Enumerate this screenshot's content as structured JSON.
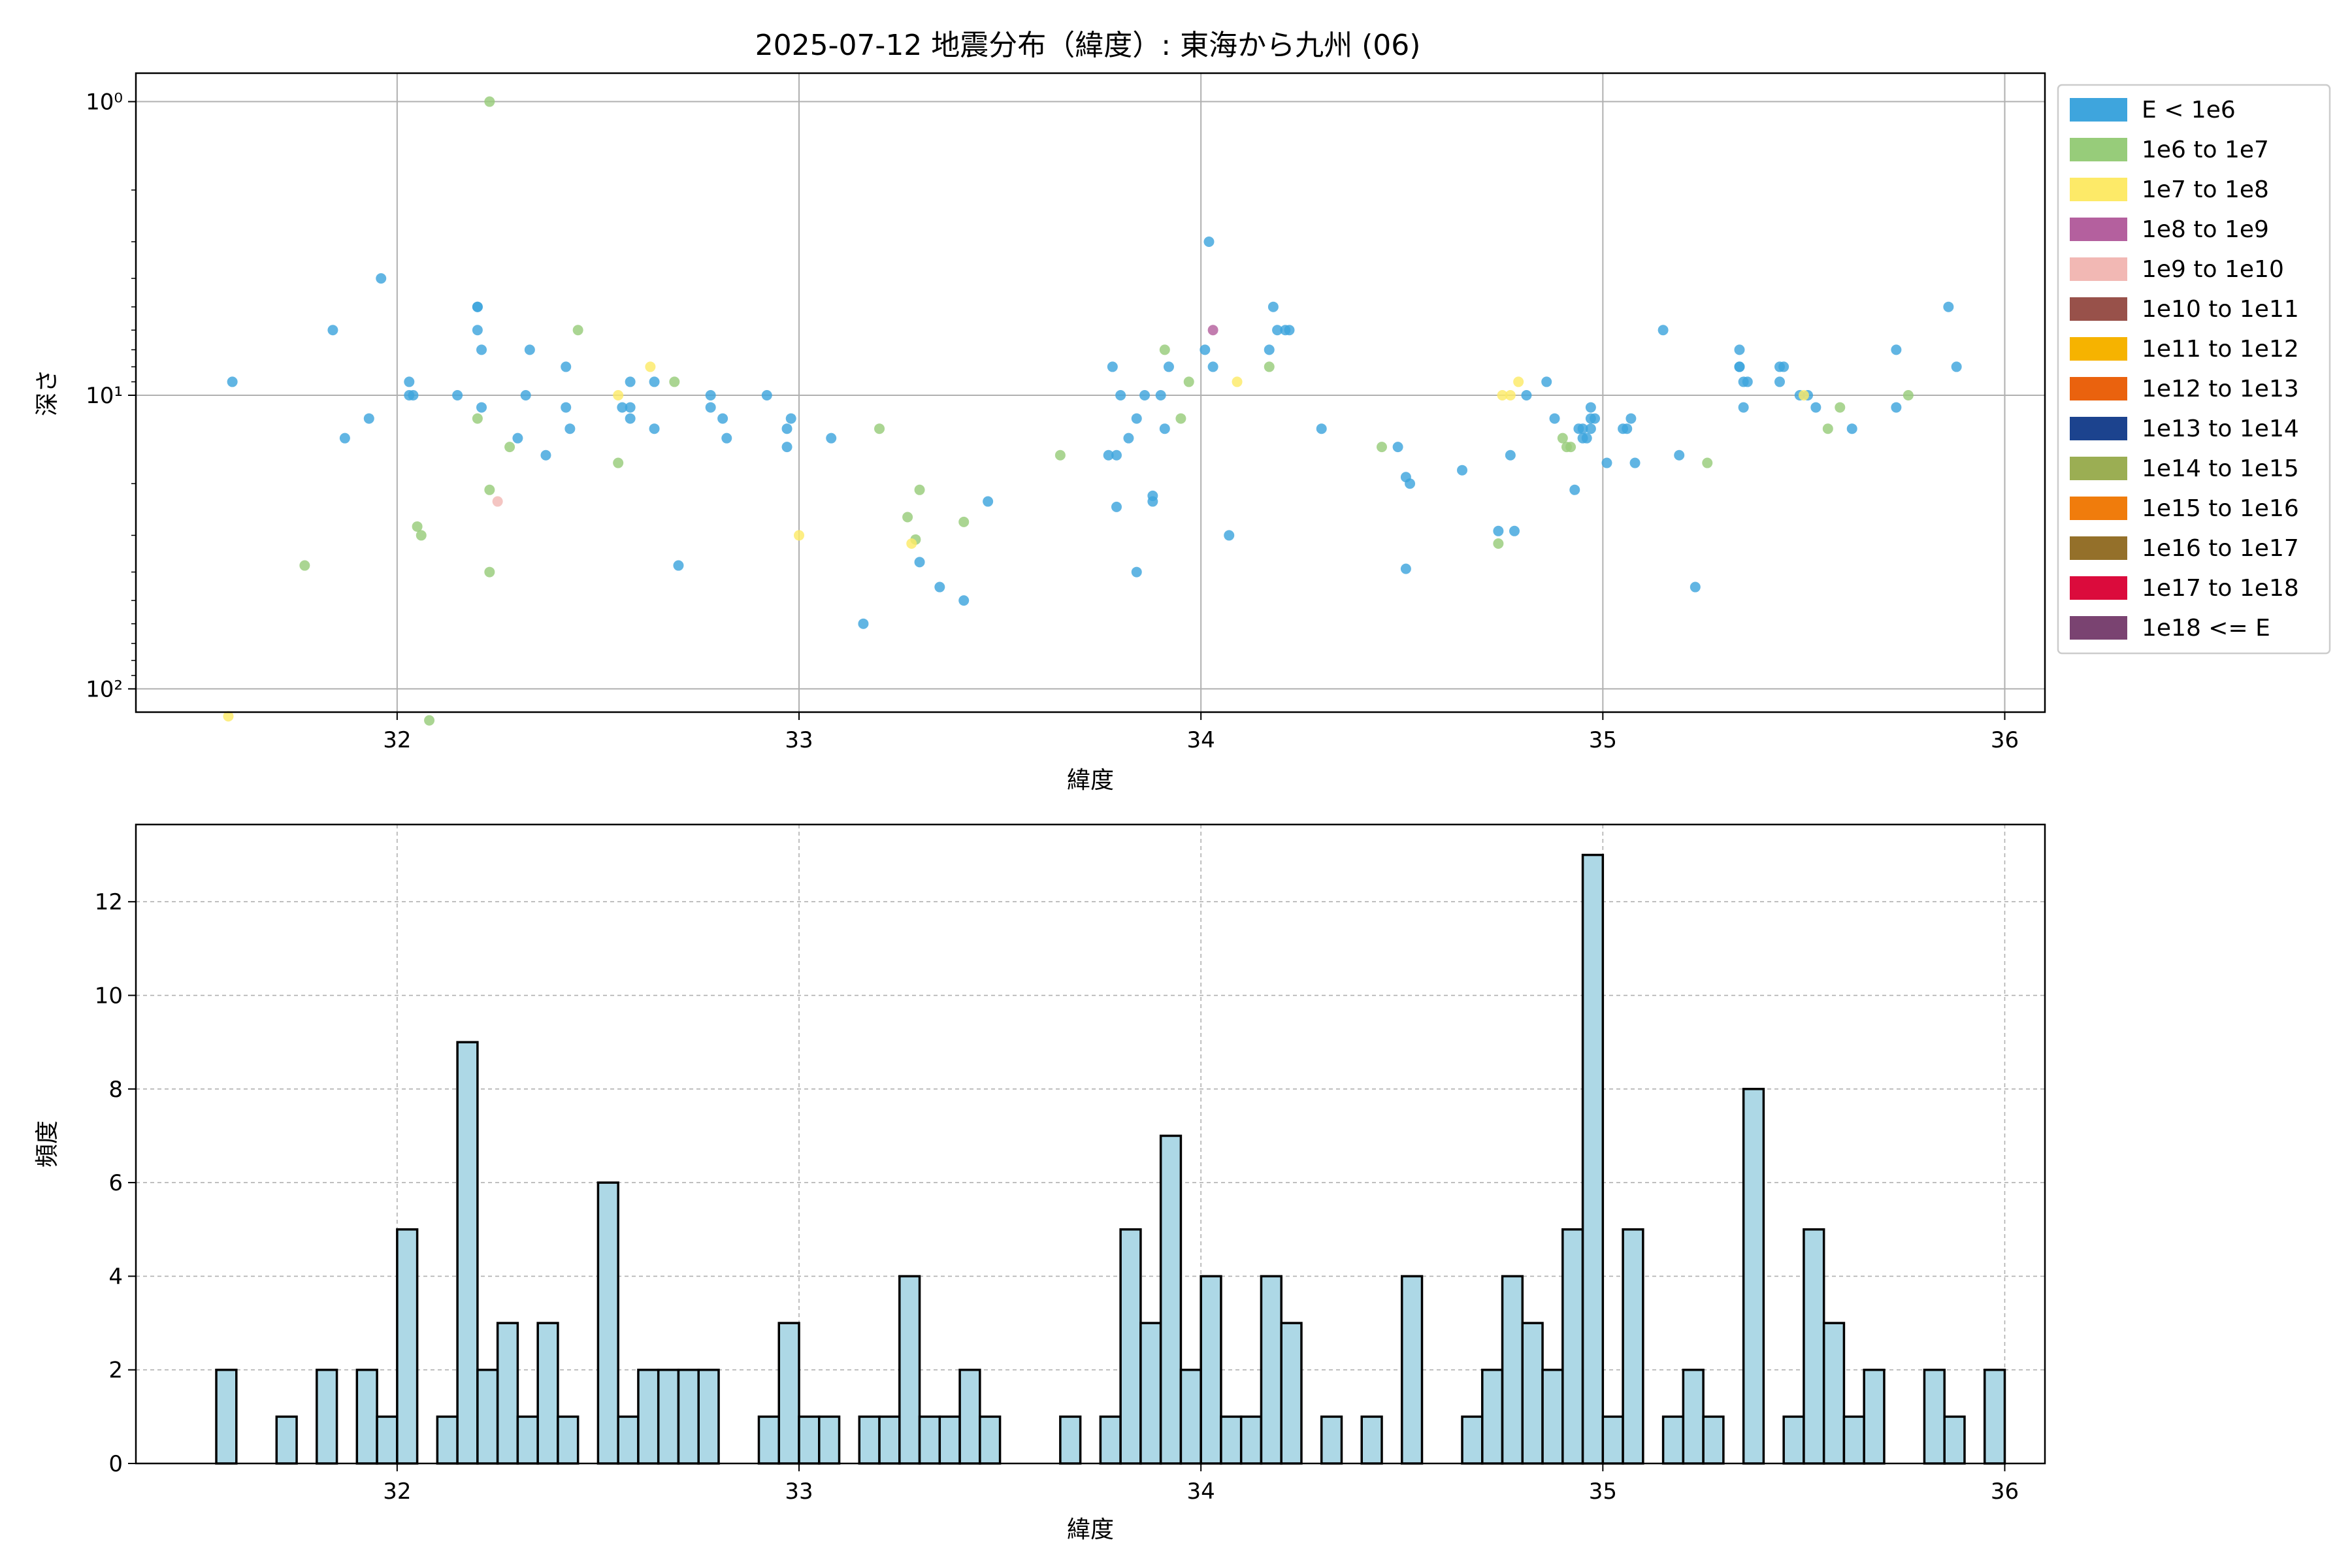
{
  "figure": {
    "title": "2025-07-12 地震分布（緯度）: 東海から九州 (06)"
  },
  "chart_data": [
    {
      "type": "scatter",
      "xlabel": "緯度",
      "ylabel": "深さ",
      "xlim": [
        31.35,
        36.1
      ],
      "ylim": [
        120,
        0.8
      ],
      "yscale": "log",
      "y_inverted": true,
      "x_ticks": [
        32,
        33,
        34,
        35,
        36
      ],
      "y_ticks": [
        {
          "value": 1,
          "label": "10⁰"
        },
        {
          "value": 10,
          "label": "10¹"
        },
        {
          "value": 100,
          "label": "10²"
        }
      ],
      "grid": true,
      "legend_position": "outside-right",
      "series": [
        {
          "name": "E < 1e6",
          "color": "#3ea5dd",
          "points": [
            [
              31.59,
              9
            ],
            [
              31.87,
              14
            ],
            [
              31.84,
              6
            ],
            [
              31.93,
              12
            ],
            [
              31.96,
              4
            ],
            [
              32.03,
              9
            ],
            [
              32.03,
              10
            ],
            [
              32.04,
              10
            ],
            [
              32.15,
              10
            ],
            [
              32.2,
              5
            ],
            [
              32.2,
              5
            ],
            [
              32.2,
              6
            ],
            [
              32.21,
              7
            ],
            [
              32.21,
              11
            ],
            [
              32.32,
              10
            ],
            [
              32.33,
              7
            ],
            [
              32.3,
              14
            ],
            [
              32.37,
              16
            ],
            [
              32.42,
              8
            ],
            [
              32.42,
              11
            ],
            [
              32.43,
              13
            ],
            [
              32.56,
              11
            ],
            [
              32.58,
              9
            ],
            [
              32.58,
              11
            ],
            [
              32.58,
              12
            ],
            [
              32.64,
              9
            ],
            [
              32.64,
              13
            ],
            [
              32.7,
              38
            ],
            [
              32.78,
              10
            ],
            [
              32.78,
              11
            ],
            [
              32.81,
              12
            ],
            [
              32.82,
              14
            ],
            [
              32.92,
              10
            ],
            [
              32.97,
              13
            ],
            [
              32.97,
              15
            ],
            [
              32.98,
              12
            ],
            [
              33.08,
              14
            ],
            [
              33.16,
              60
            ],
            [
              33.3,
              37
            ],
            [
              33.35,
              45
            ],
            [
              33.41,
              50
            ],
            [
              33.47,
              23
            ],
            [
              33.77,
              16
            ],
            [
              33.78,
              8
            ],
            [
              33.79,
              24
            ],
            [
              33.79,
              16
            ],
            [
              33.8,
              10
            ],
            [
              33.82,
              14
            ],
            [
              33.84,
              12
            ],
            [
              33.84,
              40
            ],
            [
              33.86,
              10
            ],
            [
              33.88,
              22
            ],
            [
              33.88,
              23
            ],
            [
              33.9,
              10
            ],
            [
              33.91,
              13
            ],
            [
              33.92,
              8
            ],
            [
              34.01,
              7
            ],
            [
              34.02,
              3
            ],
            [
              34.03,
              8
            ],
            [
              34.07,
              30
            ],
            [
              34.17,
              7
            ],
            [
              34.18,
              5
            ],
            [
              34.19,
              6
            ],
            [
              34.21,
              6
            ],
            [
              34.22,
              6
            ],
            [
              34.3,
              13
            ],
            [
              34.49,
              15
            ],
            [
              34.51,
              19
            ],
            [
              34.52,
              20
            ],
            [
              34.51,
              39
            ],
            [
              34.65,
              18
            ],
            [
              34.74,
              29
            ],
            [
              34.77,
              16
            ],
            [
              34.78,
              29
            ],
            [
              34.81,
              10
            ],
            [
              34.86,
              9
            ],
            [
              34.88,
              12
            ],
            [
              34.93,
              21
            ],
            [
              34.94,
              13
            ],
            [
              34.95,
              13
            ],
            [
              34.95,
              14
            ],
            [
              34.96,
              14
            ],
            [
              34.97,
              13
            ],
            [
              34.97,
              11
            ],
            [
              34.97,
              12
            ],
            [
              34.98,
              12
            ],
            [
              35.01,
              17
            ],
            [
              35.05,
              13
            ],
            [
              35.06,
              13
            ],
            [
              35.07,
              12
            ],
            [
              35.08,
              17
            ],
            [
              35.15,
              6
            ],
            [
              35.19,
              16
            ],
            [
              35.23,
              45
            ],
            [
              35.34,
              7
            ],
            [
              35.34,
              8
            ],
            [
              35.34,
              8
            ],
            [
              35.35,
              9
            ],
            [
              35.36,
              9
            ],
            [
              35.35,
              11
            ],
            [
              35.44,
              8
            ],
            [
              35.45,
              8
            ],
            [
              35.44,
              9
            ],
            [
              35.49,
              10
            ],
            [
              35.51,
              10
            ],
            [
              35.53,
              11
            ],
            [
              35.62,
              13
            ],
            [
              35.73,
              7
            ],
            [
              35.73,
              11
            ],
            [
              35.86,
              5
            ],
            [
              35.88,
              8
            ]
          ]
        },
        {
          "name": "1e6 to 1e7",
          "color": "#97cc7a",
          "points": [
            [
              31.77,
              38
            ],
            [
              32.05,
              28
            ],
            [
              32.06,
              30
            ],
            [
              32.08,
              128
            ],
            [
              32.2,
              12
            ],
            [
              32.23,
              1
            ],
            [
              32.23,
              21
            ],
            [
              32.23,
              40
            ],
            [
              32.28,
              15
            ],
            [
              32.45,
              6
            ],
            [
              32.55,
              17
            ],
            [
              32.69,
              9
            ],
            [
              33.2,
              13
            ],
            [
              33.27,
              26
            ],
            [
              33.29,
              31
            ],
            [
              33.3,
              21
            ],
            [
              33.41,
              27
            ],
            [
              33.65,
              16
            ],
            [
              33.91,
              7
            ],
            [
              33.95,
              12
            ],
            [
              33.97,
              9
            ],
            [
              34.17,
              8
            ],
            [
              34.45,
              15
            ],
            [
              34.74,
              32
            ],
            [
              34.9,
              14
            ],
            [
              34.91,
              15
            ],
            [
              34.92,
              15
            ],
            [
              35.26,
              17
            ],
            [
              35.56,
              13
            ],
            [
              35.59,
              11
            ],
            [
              35.76,
              10
            ]
          ]
        },
        {
          "name": "1e7 to 1e8",
          "color": "#fdea68",
          "points": [
            [
              31.58,
              124
            ],
            [
              32.55,
              10
            ],
            [
              32.63,
              8
            ],
            [
              33.0,
              30
            ],
            [
              33.28,
              32
            ],
            [
              34.09,
              9
            ],
            [
              34.75,
              10
            ],
            [
              34.77,
              10
            ],
            [
              34.79,
              9
            ],
            [
              35.5,
              10
            ]
          ]
        },
        {
          "name": "1e8 to 1e9",
          "color": "#b4609e",
          "points": [
            [
              34.03,
              6
            ]
          ]
        },
        {
          "name": "1e9 to 1e10",
          "color": "#f2b8b4",
          "points": [
            [
              32.25,
              23
            ]
          ]
        },
        {
          "name": "1e10 to 1e11",
          "color": "#98514a",
          "points": []
        },
        {
          "name": "1e11 to 1e12",
          "color": "#f6b300",
          "points": []
        },
        {
          "name": "1e12 to 1e13",
          "color": "#ea620e",
          "points": []
        },
        {
          "name": "1e13 to 1e14",
          "color": "#1c438e",
          "points": []
        },
        {
          "name": "1e14 to 1e15",
          "color": "#9bae53",
          "points": []
        },
        {
          "name": "1e15 to 1e16",
          "color": "#f07c0c",
          "points": []
        },
        {
          "name": "1e16 to 1e17",
          "color": "#94702a",
          "points": []
        },
        {
          "name": "1e17 to 1e18",
          "color": "#db0b3c",
          "points": []
        },
        {
          "name": "1e18 <= E",
          "color": "#7a4371",
          "points": []
        }
      ]
    },
    {
      "type": "bar",
      "xlabel": "緯度",
      "ylabel": "頻度",
      "xlim": [
        31.35,
        36.1
      ],
      "ylim": [
        0,
        13.65
      ],
      "x_ticks": [
        32,
        33,
        34,
        35,
        36
      ],
      "y_ticks": [
        0,
        2,
        4,
        6,
        8,
        10,
        12
      ],
      "grid": "dashed",
      "bin_start": 31.55,
      "bin_width": 0.05,
      "bar_color": "#add8e6",
      "edge_color": "#000000",
      "counts": [
        2,
        0,
        0,
        1,
        0,
        2,
        0,
        2,
        1,
        5,
        0,
        1,
        9,
        2,
        3,
        1,
        3,
        1,
        0,
        6,
        1,
        2,
        2,
        2,
        2,
        0,
        0,
        1,
        3,
        1,
        1,
        0,
        1,
        1,
        4,
        1,
        1,
        2,
        1,
        0,
        0,
        0,
        1,
        0,
        1,
        5,
        3,
        7,
        2,
        4,
        1,
        1,
        4,
        3,
        0,
        1,
        0,
        1,
        0,
        4,
        0,
        0,
        1,
        2,
        4,
        3,
        2,
        5,
        13,
        1,
        5,
        0,
        1,
        2,
        1,
        0,
        8,
        0,
        1,
        5,
        3,
        1,
        2,
        0,
        0,
        2,
        1,
        0,
        2
      ]
    }
  ]
}
